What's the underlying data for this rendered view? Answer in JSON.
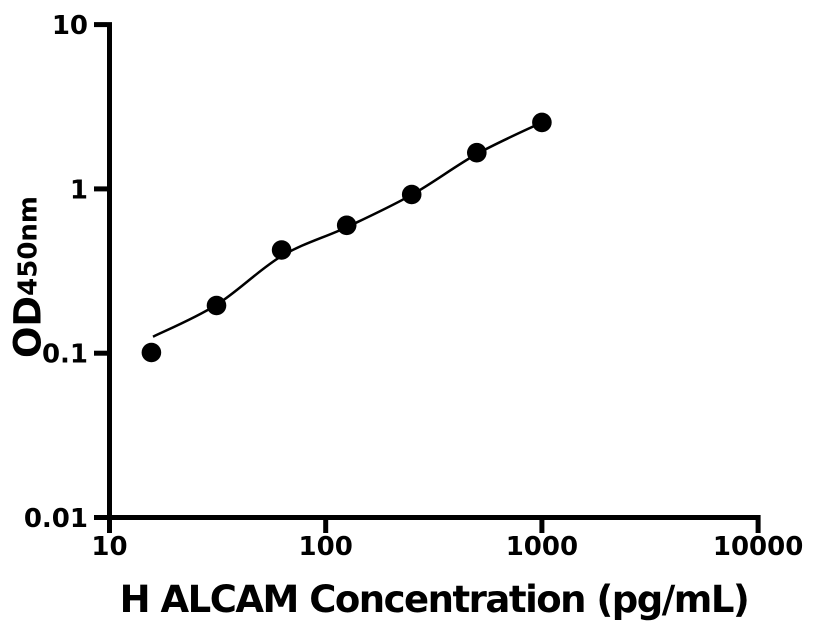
{
  "figure": {
    "background_color": "#ffffff",
    "ink_color": "#000000"
  },
  "chart_data": {
    "type": "scatter",
    "title": "",
    "xlabel": "H ALCAM Concentration (pg/mL)",
    "ylabel_main": "OD",
    "ylabel_subscript": "450nm",
    "x_scale": "log",
    "y_scale": "log",
    "xlim": [
      10,
      10000
    ],
    "ylim": [
      0.01,
      10
    ],
    "grid": false,
    "legend": "none",
    "x_ticks": [
      {
        "value": 10,
        "label": "10"
      },
      {
        "value": 100,
        "label": "100"
      },
      {
        "value": 1000,
        "label": "1000"
      },
      {
        "value": 10000,
        "label": "10000"
      }
    ],
    "y_ticks": [
      {
        "value": 10,
        "label": "10"
      },
      {
        "value": 1,
        "label": "1"
      },
      {
        "value": 0.1,
        "label": "0.1"
      },
      {
        "value": 0.01,
        "label": "0.01"
      }
    ],
    "series": [
      {
        "name": "standard-curve-points",
        "marker": "filled-circle",
        "color": "#000000",
        "points": [
          {
            "x": 15.625,
            "y": 0.101
          },
          {
            "x": 31.25,
            "y": 0.195
          },
          {
            "x": 62.5,
            "y": 0.425
          },
          {
            "x": 125,
            "y": 0.6
          },
          {
            "x": 250,
            "y": 0.925
          },
          {
            "x": 500,
            "y": 1.66
          },
          {
            "x": 1000,
            "y": 2.54
          }
        ]
      }
    ],
    "trendline": {
      "name": "fitted-curve",
      "color": "#000000",
      "anchors": [
        {
          "x": 15.9,
          "y": 0.126
        },
        {
          "x": 31.25,
          "y": 0.197
        },
        {
          "x": 62.5,
          "y": 0.39
        },
        {
          "x": 125,
          "y": 0.585
        },
        {
          "x": 250,
          "y": 0.92
        },
        {
          "x": 500,
          "y": 1.63
        },
        {
          "x": 1000,
          "y": 2.54
        }
      ]
    }
  }
}
